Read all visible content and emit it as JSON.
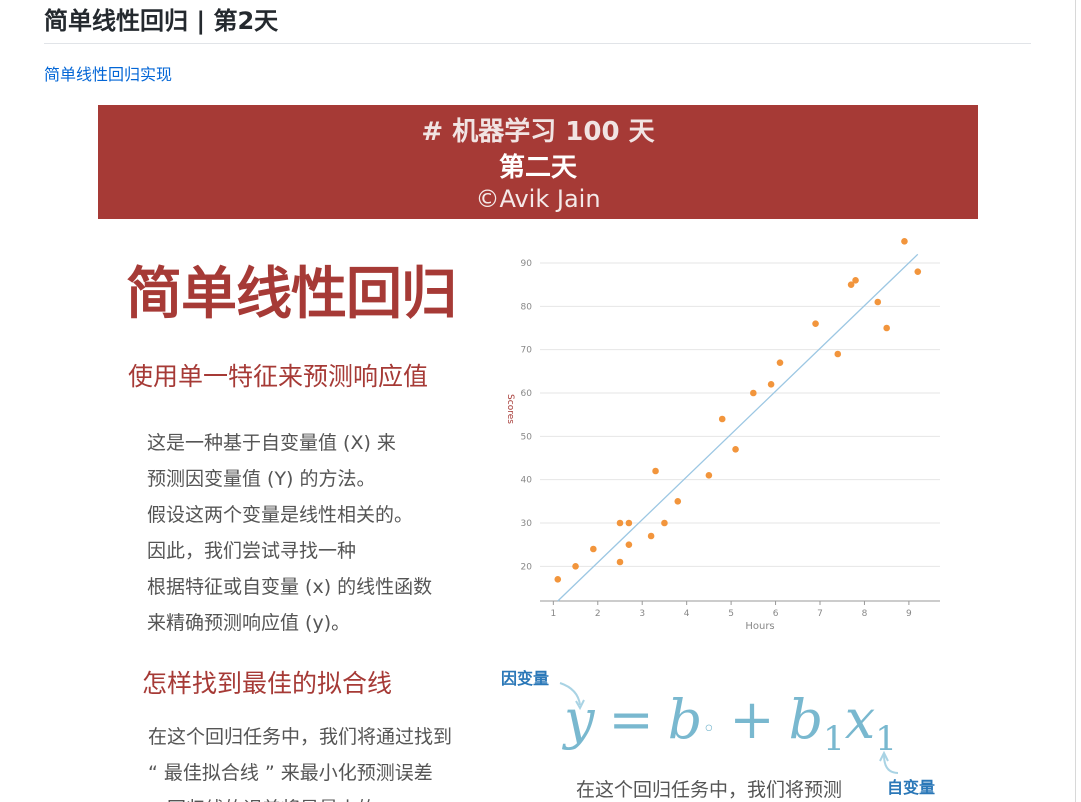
{
  "page": {
    "title": "简单线性回归 | 第2天",
    "link_text": "简单线性回归实现"
  },
  "banner": {
    "line1": "# 机器学习 100 天",
    "line2": "第二天",
    "line3": "©Avik Jain"
  },
  "content": {
    "main_heading": "简单线性回归",
    "subheading": "使用单一特征来预测响应值",
    "paragraph1": [
      "这是一种基于自变量值 (X) 来",
      "预测因变量值 (Y) 的方法。",
      "假设这两个变量是线性相关的。",
      "因此，我们尝试寻找一种",
      "根据特征或自变量 (x) 的线性函数",
      "来精确预测响应值 (y)。"
    ],
    "heading_fit": "怎样找到最佳的拟合线",
    "paragraph2": [
      "在这个回归任务中，我们将通过找到",
      "“ 最佳拟合线 ” 来最小化预测误差",
      "。回归线的误差将是最小的。"
    ],
    "label_dependent": "因变量",
    "label_independent": "自变量",
    "formula": {
      "y": "y",
      "eq": "=",
      "b0": "b",
      "b0_sub": "◦",
      "plus": "+",
      "b1": "b",
      "b1_sub": "1",
      "x1": "x",
      "x1_sub": "1"
    },
    "bottom_text": "在这个回归任务中，我们将预测"
  },
  "chart_data": {
    "type": "scatter",
    "xlabel": "Hours",
    "ylabel": "Scores",
    "xlim": [
      0.7,
      9.7
    ],
    "ylim": [
      12,
      96
    ],
    "xticks": [
      1,
      2,
      3,
      4,
      5,
      6,
      7,
      8,
      9
    ],
    "yticks": [
      20,
      30,
      40,
      50,
      60,
      70,
      80,
      90
    ],
    "grid": true,
    "point_color": "#f2953c",
    "line_color": "#9cc7e3",
    "points": [
      {
        "x": 1.1,
        "y": 17
      },
      {
        "x": 1.5,
        "y": 20
      },
      {
        "x": 1.9,
        "y": 24
      },
      {
        "x": 2.5,
        "y": 30
      },
      {
        "x": 2.5,
        "y": 21
      },
      {
        "x": 2.7,
        "y": 30
      },
      {
        "x": 2.7,
        "y": 25
      },
      {
        "x": 3.2,
        "y": 27
      },
      {
        "x": 3.3,
        "y": 42
      },
      {
        "x": 3.5,
        "y": 30
      },
      {
        "x": 3.8,
        "y": 35
      },
      {
        "x": 4.5,
        "y": 41
      },
      {
        "x": 4.8,
        "y": 54
      },
      {
        "x": 5.1,
        "y": 47
      },
      {
        "x": 5.5,
        "y": 60
      },
      {
        "x": 5.9,
        "y": 62
      },
      {
        "x": 6.1,
        "y": 67
      },
      {
        "x": 6.9,
        "y": 76
      },
      {
        "x": 7.4,
        "y": 69
      },
      {
        "x": 7.7,
        "y": 85
      },
      {
        "x": 7.8,
        "y": 86
      },
      {
        "x": 8.3,
        "y": 81
      },
      {
        "x": 8.5,
        "y": 75
      },
      {
        "x": 8.9,
        "y": 95
      },
      {
        "x": 9.2,
        "y": 88
      }
    ],
    "regression_line": [
      {
        "x": 1.1,
        "y": 12
      },
      {
        "x": 9.2,
        "y": 92
      }
    ]
  }
}
